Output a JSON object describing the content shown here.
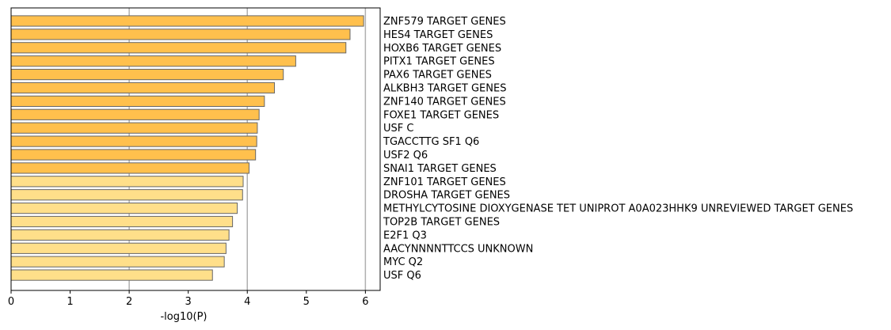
{
  "chart_data": {
    "type": "bar",
    "orientation": "horizontal",
    "xlabel": "-log10(P)",
    "ylabel": "",
    "title": "",
    "xlim": [
      0,
      6.25
    ],
    "xticks": [
      0,
      1,
      2,
      3,
      4,
      5,
      6
    ],
    "grid": "vertical gridlines at 2, 4, 6",
    "category_labels_side": "right",
    "colors": {
      "high": "#ffc04d",
      "low": "#ffdf8a",
      "edge": "#666666",
      "grid": "#b0b0b0"
    },
    "categories": [
      "ZNF579 TARGET GENES",
      "HES4 TARGET GENES",
      "HOXB6 TARGET GENES",
      "PITX1 TARGET GENES",
      "PAX6 TARGET GENES",
      "ALKBH3 TARGET GENES",
      "ZNF140 TARGET GENES",
      "FOXE1 TARGET GENES",
      "USF C",
      "TGACCTTG SF1 Q6",
      "USF2 Q6",
      "SNAI1 TARGET GENES",
      "ZNF101 TARGET GENES",
      "DROSHA TARGET GENES",
      "METHYLCYTOSINE DIOXYGENASE TET UNIPROT A0A023HHK9 UNREVIEWED TARGET GENES",
      "TOP2B TARGET GENES",
      "E2F1 Q3",
      "AACYNNNNTTCCS UNKNOWN",
      "MYC Q2",
      "USF Q6"
    ],
    "values": [
      5.97,
      5.74,
      5.67,
      4.82,
      4.61,
      4.46,
      4.29,
      4.2,
      4.17,
      4.16,
      4.14,
      4.03,
      3.93,
      3.92,
      3.83,
      3.75,
      3.69,
      3.64,
      3.61,
      3.41
    ],
    "tiers": [
      "high",
      "high",
      "high",
      "high",
      "high",
      "high",
      "high",
      "high",
      "high",
      "high",
      "high",
      "high",
      "low",
      "low",
      "low",
      "low",
      "low",
      "low",
      "low",
      "low"
    ]
  }
}
